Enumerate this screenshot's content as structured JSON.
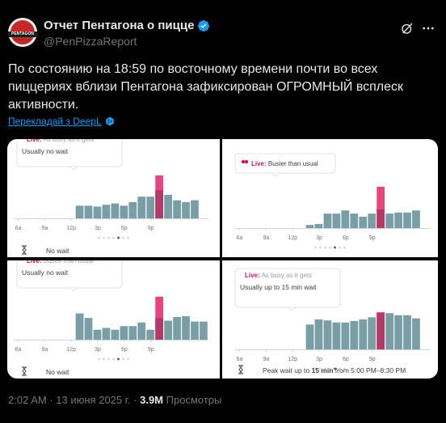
{
  "account": {
    "display_name": "Отчет Пентагона о пицце",
    "handle": "@PenPizzaReport",
    "avatar_text": "PENTAGON",
    "avatar_subtext": "PIZZA REPORT"
  },
  "tweet": {
    "text": "По состоянию на 18:59 по восточному времени почти во всех пиццериях вблизи Пентагона зафиксирован ОГРОМНЫЙ всплеск активности.",
    "translate_link": "Перекладай з DeepL"
  },
  "panels": [
    {
      "live_text": "Live: As busy as it gets",
      "status_text": "Usually no wait",
      "footer_text": "No wait",
      "hours": [
        "6a",
        "9a",
        "12p",
        "3p",
        "6p",
        "9p"
      ],
      "bars": [
        0,
        0,
        0,
        0,
        0,
        0,
        0,
        0.28,
        0.28,
        0.26,
        0.3,
        0.33,
        0.28,
        0.36,
        0.48,
        0.48,
        0.62,
        0.52,
        0.4,
        0.36,
        0.4,
        0
      ],
      "live_index": 16,
      "live_value": 0.95
    },
    {
      "live_text": "Live: Busier than usual",
      "status_text": "",
      "footer_text": "",
      "hours": [
        "6a",
        "9a",
        "12p",
        "3p",
        "6p",
        "9p"
      ],
      "bars": [
        0,
        0,
        0,
        0,
        0,
        0,
        0,
        0,
        0.06,
        0.08,
        0.28,
        0.28,
        0.34,
        0.28,
        0.22,
        0.28,
        0.36,
        0.28,
        0.3,
        0.3,
        0.34,
        0
      ],
      "live_index": 16,
      "live_value": 0.8
    },
    {
      "live_text": "Live: Busier than usual",
      "status_text": "Usually no wait",
      "footer_text": "No wait",
      "hours": [
        "6a",
        "9a",
        "12p",
        "3p",
        "6p",
        "9p"
      ],
      "bars": [
        0,
        0,
        0,
        0,
        0,
        0,
        0,
        0.58,
        0.48,
        0.22,
        0.26,
        0.22,
        0.3,
        0.3,
        0.38,
        0.22,
        0.48,
        0.42,
        0.5,
        0.52,
        0.4,
        0.4
      ],
      "live_index": 16,
      "live_value": 0.95
    },
    {
      "live_text": "Live: As busy as it gets",
      "status_text": "Usually up to 15 min wait",
      "footer_text": "Peak wait up to 15 min from 5:00 PM–8:30 PM",
      "footer_bold": "15 min",
      "hours": [
        "6a",
        "9a",
        "12p",
        "3p",
        "6p",
        "9p"
      ],
      "bars": [
        0,
        0,
        0,
        0,
        0,
        0,
        0,
        0,
        0.48,
        0.58,
        0.56,
        0.52,
        0.52,
        0.55,
        0.58,
        0.62,
        0.7,
        0.7,
        0.66,
        0.66,
        0.6,
        0
      ],
      "live_index": 16,
      "live_value": 0.72
    }
  ],
  "footer": {
    "time": "2:02 AM",
    "date": "13 июня 2025 г.",
    "views": "3.9M",
    "views_label": "Просмотры"
  },
  "colors": {
    "bar": "#7a9ea5",
    "live_bar": "#e8457f",
    "live_overlap": "#b23a67",
    "live_text": "#c2185b",
    "link": "#1d9bf0",
    "muted": "#71767b"
  }
}
